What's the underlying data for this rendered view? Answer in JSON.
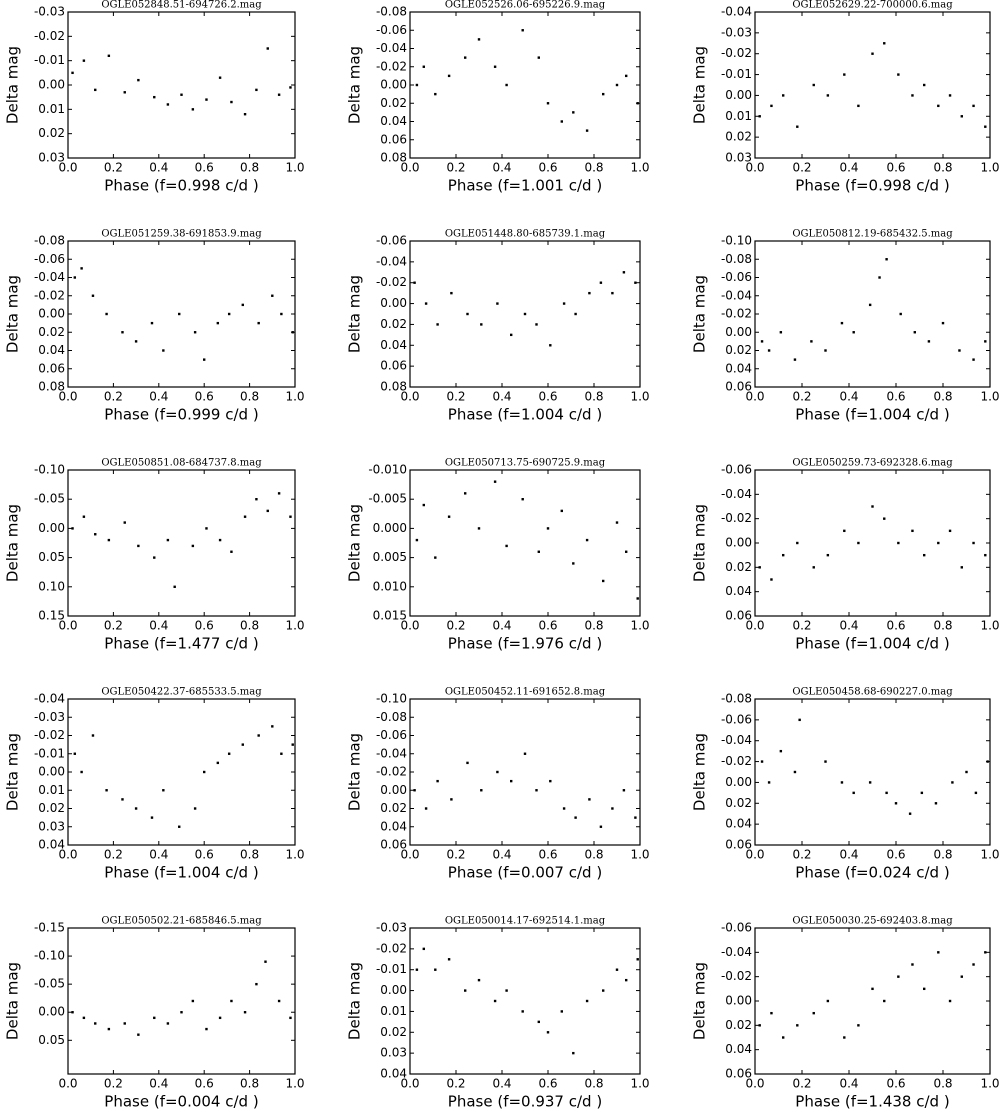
{
  "chart_data": [
    {
      "type": "scatter",
      "title": "OGLE052848.51-694726.2.mag",
      "xlabel": "Phase (f=0.998 c/d )",
      "ylabel": "Delta mag",
      "invert_y": true,
      "color": "#000000",
      "xlim": [
        0,
        1
      ],
      "xticks": [
        {
          "value": 0,
          "label": "0.0"
        },
        0.2,
        0.4,
        0.6,
        0.8,
        {
          "value": 1,
          "label": "1.0"
        }
      ],
      "ylim": [
        -0.03,
        0.03
      ],
      "yticks": [
        -0.03,
        -0.02,
        -0.01,
        {
          "value": 0,
          "label": "0.00"
        },
        0.01,
        0.02,
        0.03
      ],
      "x": [
        0.02,
        0.07,
        0.12,
        0.18,
        0.25,
        0.31,
        0.38,
        0.44,
        0.5,
        0.55,
        0.61,
        0.67,
        0.72,
        0.78,
        0.83,
        0.88,
        0.93,
        0.98
      ],
      "y": [
        -0.005,
        -0.01,
        0.002,
        -0.012,
        0.003,
        -0.002,
        0.005,
        0.008,
        0.004,
        0.01,
        0.006,
        -0.003,
        0.007,
        0.012,
        0.002,
        -0.015,
        0.004,
        0.001
      ]
    },
    {
      "type": "scatter",
      "title": "OGLE052526.06-695226.9.mag",
      "xlabel": "Phase (f=1.001 c/d )",
      "ylabel": "Delta mag",
      "invert_y": true,
      "color": "#000000",
      "xlim": [
        0,
        1
      ],
      "xticks": [
        {
          "value": 0,
          "label": "0.0"
        },
        0.2,
        0.4,
        0.6,
        0.8,
        {
          "value": 1,
          "label": "1.0"
        }
      ],
      "ylim": [
        -0.08,
        0.08
      ],
      "yticks": [
        -0.08,
        -0.06,
        -0.04,
        -0.02,
        {
          "value": 0,
          "label": "0.00"
        },
        0.02,
        0.04,
        0.06,
        0.08
      ],
      "x": [
        0.03,
        0.06,
        0.11,
        0.17,
        0.24,
        0.3,
        0.37,
        0.42,
        0.49,
        0.56,
        0.6,
        0.66,
        0.71,
        0.77,
        0.84,
        0.9,
        0.94,
        0.99
      ],
      "y": [
        0,
        -0.02,
        0.01,
        -0.01,
        -0.03,
        -0.05,
        -0.02,
        0,
        -0.06,
        -0.03,
        0.02,
        0.04,
        0.03,
        0.05,
        0.01,
        0,
        -0.01,
        0.02
      ]
    },
    {
      "type": "scatter",
      "title": "OGLE052629.22-700000.6.mag",
      "xlabel": "Phase (f=0.998 c/d )",
      "ylabel": "Delta mag",
      "invert_y": true,
      "color": "#000000",
      "xlim": [
        0,
        1
      ],
      "xticks": [
        {
          "value": 0,
          "label": "0.0"
        },
        0.2,
        0.4,
        0.6,
        0.8,
        {
          "value": 1,
          "label": "1.0"
        }
      ],
      "ylim": [
        -0.04,
        0.03
      ],
      "yticks": [
        -0.04,
        -0.03,
        -0.02,
        -0.01,
        {
          "value": 0,
          "label": "0.00"
        },
        0.01,
        0.02,
        0.03
      ],
      "x": [
        0.02,
        0.07,
        0.12,
        0.18,
        0.25,
        0.31,
        0.38,
        0.44,
        0.5,
        0.55,
        0.61,
        0.67,
        0.72,
        0.78,
        0.83,
        0.88,
        0.93,
        0.98
      ],
      "y": [
        0.01,
        0.005,
        0,
        0.015,
        -0.005,
        0,
        -0.01,
        0.005,
        -0.02,
        -0.025,
        -0.01,
        0,
        -0.005,
        0.005,
        0,
        0.01,
        0.005,
        0.015
      ]
    },
    {
      "type": "scatter",
      "title": "OGLE051259.38-691853.9.mag",
      "xlabel": "Phase (f=0.999 c/d )",
      "ylabel": "Delta mag",
      "invert_y": true,
      "color": "#000000",
      "xlim": [
        0,
        1
      ],
      "xticks": [
        {
          "value": 0,
          "label": "0.0"
        },
        0.2,
        0.4,
        0.6,
        0.8,
        {
          "value": 1,
          "label": "1.0"
        }
      ],
      "ylim": [
        -0.08,
        0.08
      ],
      "yticks": [
        -0.08,
        -0.06,
        -0.04,
        -0.02,
        {
          "value": 0,
          "label": "0.00"
        },
        0.02,
        0.04,
        0.06,
        0.08
      ],
      "x": [
        0.03,
        0.06,
        0.11,
        0.17,
        0.24,
        0.3,
        0.37,
        0.42,
        0.49,
        0.56,
        0.6,
        0.66,
        0.71,
        0.77,
        0.84,
        0.9,
        0.94,
        0.99
      ],
      "y": [
        -0.04,
        -0.05,
        -0.02,
        0,
        0.02,
        0.03,
        0.01,
        0.04,
        0,
        0.02,
        0.05,
        0.01,
        0,
        -0.01,
        0.01,
        -0.02,
        0,
        0.02
      ]
    },
    {
      "type": "scatter",
      "title": "OGLE051448.80-685739.1.mag",
      "xlabel": "Phase (f=1.004 c/d )",
      "ylabel": "Delta mag",
      "invert_y": true,
      "color": "#000000",
      "xlim": [
        0,
        1
      ],
      "xticks": [
        {
          "value": 0,
          "label": "0.0"
        },
        0.2,
        0.4,
        0.6,
        0.8,
        {
          "value": 1,
          "label": "1.0"
        }
      ],
      "ylim": [
        -0.06,
        0.08
      ],
      "yticks": [
        -0.06,
        -0.04,
        -0.02,
        {
          "value": 0,
          "label": "0.00"
        },
        0.02,
        0.04,
        0.06,
        0.08
      ],
      "x": [
        0.02,
        0.07,
        0.12,
        0.18,
        0.25,
        0.31,
        0.38,
        0.44,
        0.5,
        0.55,
        0.61,
        0.67,
        0.72,
        0.78,
        0.83,
        0.88,
        0.93,
        0.98
      ],
      "y": [
        -0.02,
        0,
        0.02,
        -0.01,
        0.01,
        0.02,
        0,
        0.03,
        0.01,
        0.02,
        0.04,
        0,
        0.01,
        -0.01,
        -0.02,
        -0.01,
        -0.03,
        -0.02
      ]
    },
    {
      "type": "scatter",
      "title": "OGLE050812.19-685432.5.mag",
      "xlabel": "Phase (f=1.004 c/d )",
      "ylabel": "Delta mag",
      "invert_y": true,
      "color": "#000000",
      "xlim": [
        0,
        1
      ],
      "xticks": [
        {
          "value": 0,
          "label": "0.0"
        },
        0.2,
        0.4,
        0.6,
        0.8,
        {
          "value": 1,
          "label": "1.0"
        }
      ],
      "ylim": [
        -0.1,
        0.06
      ],
      "yticks": [
        {
          "value": -0.1,
          "label": "-0.10"
        },
        -0.08,
        -0.06,
        -0.04,
        -0.02,
        {
          "value": 0,
          "label": "0.00"
        },
        0.02,
        0.04,
        0.06
      ],
      "x": [
        0.03,
        0.06,
        0.11,
        0.17,
        0.24,
        0.3,
        0.37,
        0.42,
        0.49,
        0.53,
        0.56,
        0.62,
        0.68,
        0.74,
        0.8,
        0.87,
        0.93,
        0.98
      ],
      "y": [
        0.01,
        0.02,
        0,
        0.03,
        0.01,
        0.02,
        -0.01,
        0,
        -0.03,
        -0.06,
        -0.08,
        -0.02,
        0,
        0.01,
        -0.01,
        0.02,
        0.03,
        0.01
      ]
    },
    {
      "type": "scatter",
      "title": "OGLE050851.08-684737.8.mag",
      "xlabel": "Phase (f=1.477 c/d )",
      "ylabel": "Delta mag",
      "invert_y": true,
      "color": "#000000",
      "xlim": [
        0,
        1
      ],
      "xticks": [
        {
          "value": 0,
          "label": "0.0"
        },
        0.2,
        0.4,
        0.6,
        0.8,
        {
          "value": 1,
          "label": "1.0"
        }
      ],
      "ylim": [
        -0.1,
        0.15
      ],
      "yticks": [
        {
          "value": -0.1,
          "label": "-0.10"
        },
        -0.05,
        {
          "value": 0,
          "label": "0.00"
        },
        0.05,
        {
          "value": 0.1,
          "label": "0.10"
        },
        0.15
      ],
      "x": [
        0.02,
        0.07,
        0.12,
        0.18,
        0.25,
        0.31,
        0.38,
        0.44,
        0.47,
        0.55,
        0.61,
        0.67,
        0.72,
        0.78,
        0.83,
        0.88,
        0.93,
        0.98
      ],
      "y": [
        0,
        -0.02,
        0.01,
        0.02,
        -0.01,
        0.03,
        0.05,
        0.02,
        0.1,
        0.03,
        0,
        0.02,
        0.04,
        -0.02,
        -0.05,
        -0.03,
        -0.06,
        -0.02
      ]
    },
    {
      "type": "scatter",
      "title": "OGLE050713.75-690725.9.mag",
      "xlabel": "Phase (f=1.976 c/d )",
      "ylabel": "Delta mag",
      "invert_y": true,
      "color": "#000000",
      "xlim": [
        0,
        1
      ],
      "xticks": [
        {
          "value": 0,
          "label": "0.0"
        },
        0.2,
        0.4,
        0.6,
        0.8,
        {
          "value": 1,
          "label": "1.0"
        }
      ],
      "ylim": [
        -0.01,
        0.015
      ],
      "yticks": [
        {
          "value": -0.01,
          "label": "-0.010"
        },
        -0.005,
        {
          "value": 0,
          "label": "0.000"
        },
        0.005,
        {
          "value": 0.01,
          "label": "0.010"
        },
        0.015
      ],
      "x": [
        0.03,
        0.06,
        0.11,
        0.17,
        0.24,
        0.3,
        0.37,
        0.42,
        0.49,
        0.56,
        0.6,
        0.66,
        0.71,
        0.77,
        0.84,
        0.9,
        0.94,
        0.99
      ],
      "y": [
        0.002,
        -0.004,
        0.005,
        -0.002,
        -0.006,
        0,
        -0.008,
        0.003,
        -0.005,
        0.004,
        0,
        -0.003,
        0.006,
        0.002,
        0.009,
        -0.001,
        0.004,
        0.012
      ]
    },
    {
      "type": "scatter",
      "title": "OGLE050259.73-692328.6.mag",
      "xlabel": "Phase (f=1.004 c/d )",
      "ylabel": "Delta mag",
      "invert_y": true,
      "color": "#000000",
      "xlim": [
        0,
        1
      ],
      "xticks": [
        {
          "value": 0,
          "label": "0.0"
        },
        0.2,
        0.4,
        0.6,
        0.8,
        {
          "value": 1,
          "label": "1.0"
        }
      ],
      "ylim": [
        -0.06,
        0.06
      ],
      "yticks": [
        -0.06,
        -0.04,
        -0.02,
        {
          "value": 0,
          "label": "0.00"
        },
        0.02,
        0.04,
        0.06
      ],
      "x": [
        0.02,
        0.07,
        0.12,
        0.18,
        0.25,
        0.31,
        0.38,
        0.44,
        0.5,
        0.55,
        0.61,
        0.67,
        0.72,
        0.78,
        0.83,
        0.88,
        0.93,
        0.98
      ],
      "y": [
        0.02,
        0.03,
        0.01,
        0,
        0.02,
        0.01,
        -0.01,
        0,
        -0.03,
        -0.02,
        0,
        -0.01,
        0.01,
        0,
        -0.01,
        0.02,
        0,
        0.01
      ]
    },
    {
      "type": "scatter",
      "title": "OGLE050422.37-685533.5.mag",
      "xlabel": "Phase (f=1.004 c/d )",
      "ylabel": "Delta mag",
      "invert_y": true,
      "color": "#000000",
      "xlim": [
        0,
        1
      ],
      "xticks": [
        {
          "value": 0,
          "label": "0.0"
        },
        0.2,
        0.4,
        0.6,
        0.8,
        {
          "value": 1,
          "label": "1.0"
        }
      ],
      "ylim": [
        -0.04,
        0.04
      ],
      "yticks": [
        -0.04,
        -0.03,
        -0.02,
        -0.01,
        {
          "value": 0,
          "label": "0.00"
        },
        0.01,
        0.02,
        0.03,
        0.04
      ],
      "x": [
        0.03,
        0.06,
        0.11,
        0.17,
        0.24,
        0.3,
        0.37,
        0.42,
        0.49,
        0.56,
        0.6,
        0.66,
        0.71,
        0.77,
        0.84,
        0.9,
        0.94,
        0.99
      ],
      "y": [
        -0.01,
        0,
        -0.02,
        0.01,
        0.015,
        0.02,
        0.025,
        0.01,
        0.03,
        0.02,
        0,
        -0.005,
        -0.01,
        -0.015,
        -0.02,
        -0.025,
        -0.01,
        -0.015
      ]
    },
    {
      "type": "scatter",
      "title": "OGLE050452.11-691652.8.mag",
      "xlabel": "Phase (f=0.007 c/d )",
      "ylabel": "Delta mag",
      "invert_y": true,
      "color": "#000000",
      "xlim": [
        0,
        1
      ],
      "xticks": [
        {
          "value": 0,
          "label": "0.0"
        },
        0.2,
        0.4,
        0.6,
        0.8,
        {
          "value": 1,
          "label": "1.0"
        }
      ],
      "ylim": [
        -0.1,
        0.06
      ],
      "yticks": [
        {
          "value": -0.1,
          "label": "-0.10"
        },
        -0.08,
        -0.06,
        -0.04,
        -0.02,
        {
          "value": 0,
          "label": "0.00"
        },
        0.02,
        0.04,
        0.06
      ],
      "x": [
        0.02,
        0.07,
        0.12,
        0.18,
        0.25,
        0.31,
        0.38,
        0.44,
        0.5,
        0.55,
        0.61,
        0.67,
        0.72,
        0.78,
        0.83,
        0.88,
        0.93,
        0.98
      ],
      "y": [
        0,
        0.02,
        -0.01,
        0.01,
        -0.03,
        0,
        -0.02,
        -0.01,
        -0.04,
        0,
        -0.01,
        0.02,
        0.03,
        0.01,
        0.04,
        0.02,
        0,
        0.03
      ]
    },
    {
      "type": "scatter",
      "title": "OGLE050458.68-690227.0.mag",
      "xlabel": "Phase (f=0.024 c/d )",
      "ylabel": "Delta mag",
      "invert_y": true,
      "color": "#000000",
      "xlim": [
        0,
        1
      ],
      "xticks": [
        {
          "value": 0,
          "label": "0.0"
        },
        0.2,
        0.4,
        0.6,
        0.8,
        {
          "value": 1,
          "label": "1.0"
        }
      ],
      "ylim": [
        -0.08,
        0.06
      ],
      "yticks": [
        -0.08,
        -0.06,
        -0.04,
        -0.02,
        {
          "value": 0,
          "label": "0.00"
        },
        0.02,
        0.04,
        0.06
      ],
      "x": [
        0.03,
        0.06,
        0.11,
        0.17,
        0.19,
        0.3,
        0.37,
        0.42,
        0.49,
        0.56,
        0.6,
        0.66,
        0.71,
        0.77,
        0.84,
        0.9,
        0.94,
        0.99
      ],
      "y": [
        -0.02,
        0,
        -0.03,
        -0.01,
        -0.06,
        -0.02,
        0,
        0.01,
        0,
        0.01,
        0.02,
        0.03,
        0.01,
        0.02,
        0,
        -0.01,
        0.01,
        -0.02
      ]
    },
    {
      "type": "scatter",
      "title": "OGLE050502.21-685846.5.mag",
      "xlabel": "Phase (f=0.004 c/d )",
      "ylabel": "Delta mag",
      "invert_y": true,
      "color": "#000000",
      "xlim": [
        0,
        1
      ],
      "xticks": [
        {
          "value": 0,
          "label": "0.0"
        },
        0.2,
        0.4,
        0.6,
        0.8,
        {
          "value": 1,
          "label": "1.0"
        }
      ],
      "ylim": [
        -0.15,
        0.11
      ],
      "yticks": [
        -0.15,
        {
          "value": -0.1,
          "label": "-0.10"
        },
        -0.05,
        {
          "value": 0,
          "label": "0.00"
        },
        0.05
      ],
      "x": [
        0.02,
        0.07,
        0.12,
        0.18,
        0.25,
        0.31,
        0.38,
        0.44,
        0.5,
        0.55,
        0.61,
        0.67,
        0.72,
        0.78,
        0.83,
        0.87,
        0.93,
        0.98
      ],
      "y": [
        0,
        0.01,
        0.02,
        0.03,
        0.02,
        0.04,
        0.01,
        0.02,
        0,
        -0.02,
        0.03,
        0.01,
        -0.02,
        0,
        -0.05,
        -0.09,
        -0.02,
        0.01
      ]
    },
    {
      "type": "scatter",
      "title": "OGLE050014.17-692514.1.mag",
      "xlabel": "Phase (f=0.937 c/d )",
      "ylabel": "Delta mag",
      "invert_y": true,
      "color": "#000000",
      "xlim": [
        0,
        1
      ],
      "xticks": [
        {
          "value": 0,
          "label": "0.0"
        },
        0.2,
        0.4,
        0.6,
        0.8,
        {
          "value": 1,
          "label": "1.0"
        }
      ],
      "ylim": [
        -0.03,
        0.04
      ],
      "yticks": [
        -0.03,
        -0.02,
        -0.01,
        {
          "value": 0,
          "label": "0.00"
        },
        0.01,
        0.02,
        0.03,
        0.04
      ],
      "x": [
        0.03,
        0.06,
        0.11,
        0.17,
        0.24,
        0.3,
        0.37,
        0.42,
        0.49,
        0.56,
        0.6,
        0.66,
        0.71,
        0.77,
        0.84,
        0.9,
        0.94,
        0.99
      ],
      "y": [
        -0.01,
        -0.02,
        -0.01,
        -0.015,
        0,
        -0.005,
        0.005,
        0,
        0.01,
        0.015,
        0.02,
        0.01,
        0.03,
        0.005,
        0,
        -0.01,
        -0.005,
        -0.015
      ]
    },
    {
      "type": "scatter",
      "title": "OGLE050030.25-692403.8.mag",
      "xlabel": "Phase (f=1.438 c/d )",
      "ylabel": "Delta mag",
      "invert_y": true,
      "color": "#000000",
      "xlim": [
        0,
        1
      ],
      "xticks": [
        {
          "value": 0,
          "label": "0.0"
        },
        0.2,
        0.4,
        0.6,
        0.8,
        {
          "value": 1,
          "label": "1.0"
        }
      ],
      "ylim": [
        -0.06,
        0.06
      ],
      "yticks": [
        -0.06,
        -0.04,
        -0.02,
        {
          "value": 0,
          "label": "0.00"
        },
        0.02,
        0.04,
        0.06
      ],
      "x": [
        0.02,
        0.07,
        0.12,
        0.18,
        0.25,
        0.31,
        0.38,
        0.44,
        0.5,
        0.55,
        0.61,
        0.67,
        0.72,
        0.78,
        0.83,
        0.88,
        0.93,
        0.98
      ],
      "y": [
        0.02,
        0.01,
        0.03,
        0.02,
        0.01,
        0,
        0.03,
        0.02,
        -0.01,
        0,
        -0.02,
        -0.03,
        -0.01,
        -0.04,
        0,
        -0.02,
        -0.03,
        -0.04
      ]
    }
  ]
}
